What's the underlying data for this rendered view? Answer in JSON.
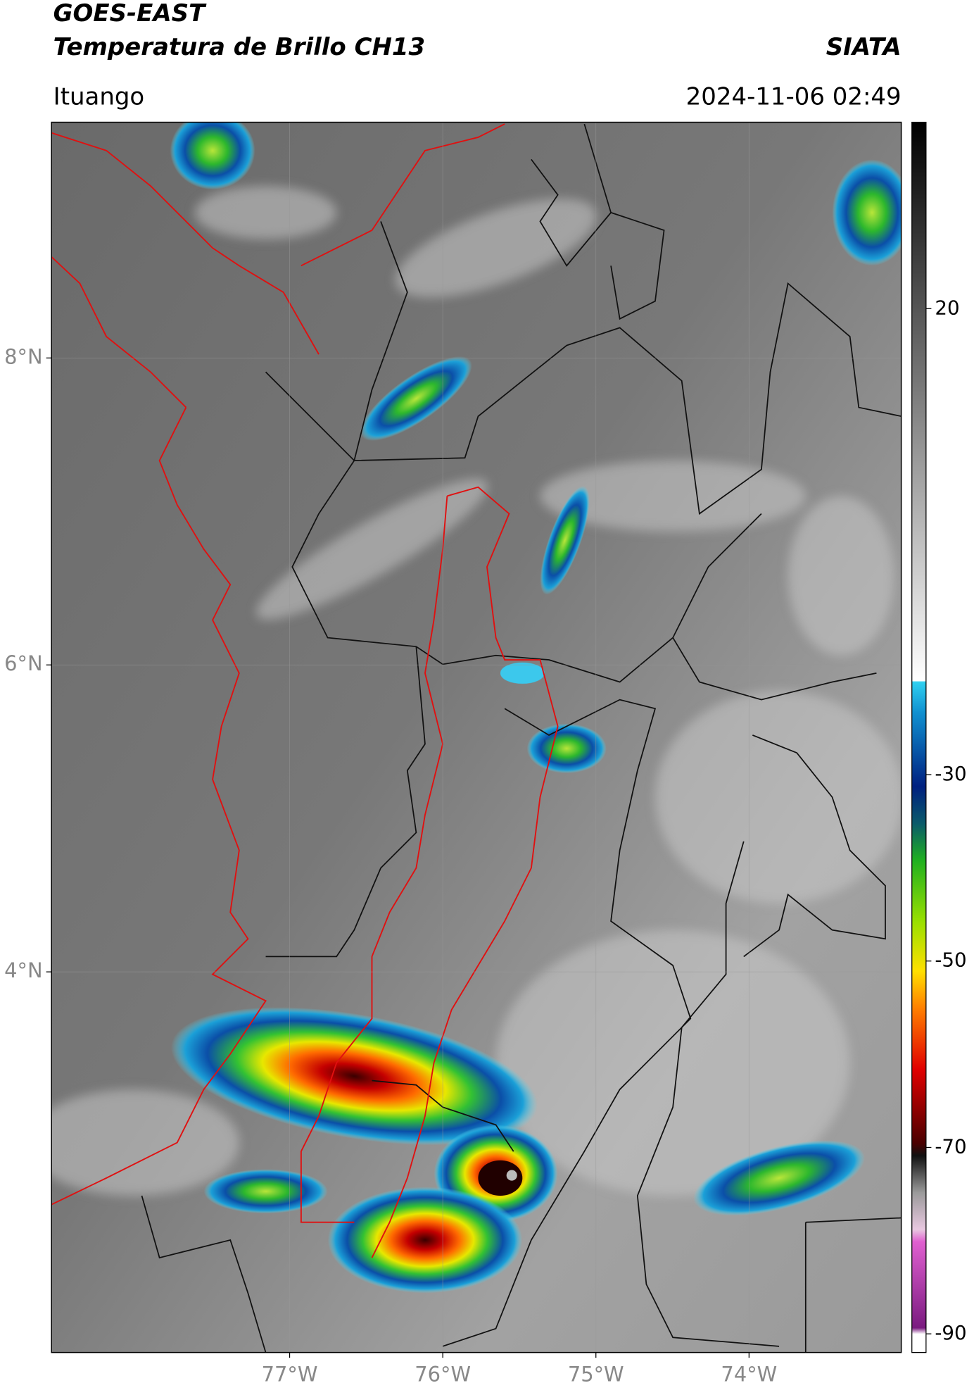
{
  "header": {
    "title": "GOES-EAST",
    "subtitle": "Temperatura de Brillo CH13",
    "agency": "SIATA",
    "location": "Ituango",
    "timestamp": "2024-11-06 02:49"
  },
  "map": {
    "xlim": [
      -78.555,
      -73.006
    ],
    "ylim": [
      1.52,
      9.536
    ],
    "xticks": [
      {
        "value": -77,
        "label": "77°W"
      },
      {
        "value": -76,
        "label": "76°W"
      },
      {
        "value": -75,
        "label": "75°W"
      },
      {
        "value": -74,
        "label": "74°W"
      }
    ],
    "yticks": [
      {
        "value": 8,
        "label": "8°N"
      },
      {
        "value": 6,
        "label": "6°N"
      },
      {
        "value": 4,
        "label": "4°N"
      }
    ],
    "grid": true
  },
  "colorbar": {
    "lim": [
      -92,
      40
    ],
    "ticks": [
      20,
      -30,
      -50,
      -70,
      -90
    ]
  }
}
